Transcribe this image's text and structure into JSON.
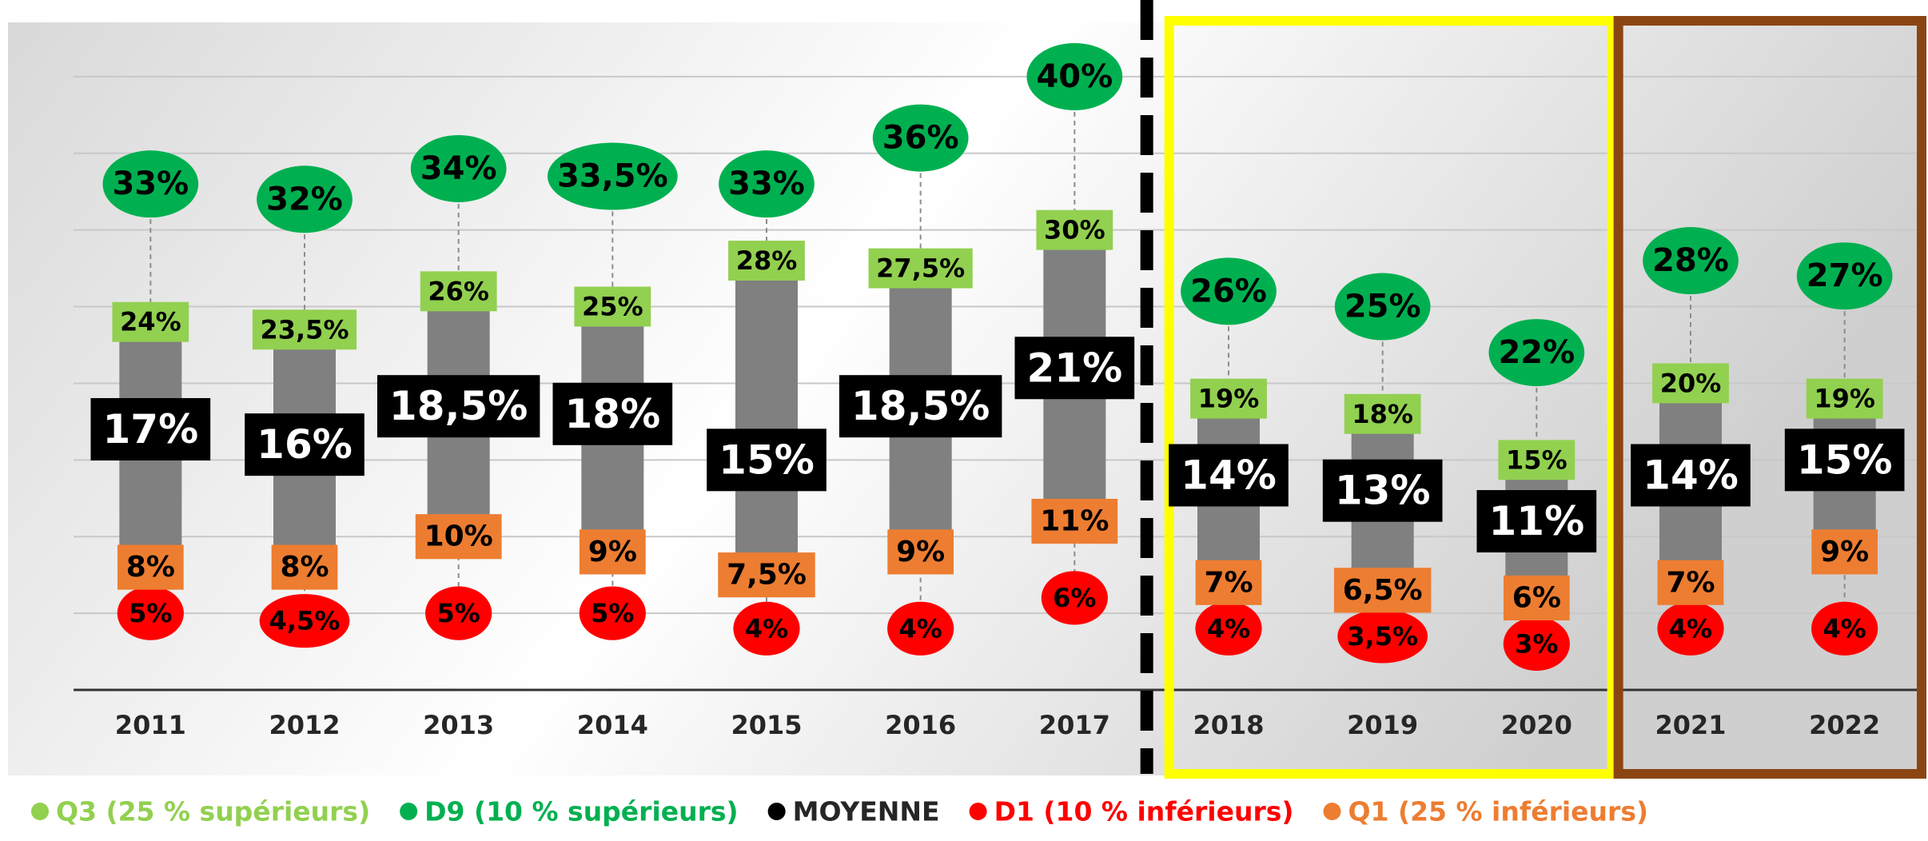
{
  "chart_data": {
    "type": "range",
    "categories": [
      "2011",
      "2012",
      "2013",
      "2014",
      "2015",
      "2016",
      "2017",
      "2018",
      "2019",
      "2020",
      "2021",
      "2022"
    ],
    "ylim": [
      0,
      45
    ],
    "yticks": [
      0,
      5,
      10,
      15,
      20,
      25,
      30,
      35,
      40
    ],
    "grid": true,
    "series": [
      {
        "name": "Q3 (25 % supérieurs)",
        "color": "#92d050",
        "values": [
          24,
          23.5,
          26,
          25,
          28,
          27.5,
          30,
          19,
          18,
          15,
          20,
          19
        ],
        "value_labels": [
          "24%",
          "23,5%",
          "26%",
          "25%",
          "28%",
          "27,5%",
          "30%",
          "19%",
          "18%",
          "15%",
          "20%",
          "19%"
        ]
      },
      {
        "name": "D9 (10 % supérieurs)",
        "color": "#00b050",
        "values": [
          33,
          32,
          34,
          33.5,
          33,
          36,
          40,
          26,
          25,
          22,
          28,
          27
        ],
        "value_labels": [
          "33%",
          "32%",
          "34%",
          "33,5%",
          "33%",
          "36%",
          "40%",
          "26%",
          "25%",
          "22%",
          "28%",
          "27%"
        ]
      },
      {
        "name": "MOYENNE",
        "color": "#000000",
        "values": [
          17,
          16,
          18.5,
          18,
          15,
          18.5,
          21,
          14,
          13,
          11,
          14,
          15
        ],
        "value_labels": [
          "17%",
          "16%",
          "18,5%",
          "18%",
          "15%",
          "18,5%",
          "21%",
          "14%",
          "13%",
          "11%",
          "14%",
          "15%"
        ]
      },
      {
        "name": "D1 (10 % inférieurs)",
        "color": "#ff0000",
        "values": [
          5,
          4.5,
          5,
          5,
          4,
          4,
          6,
          4,
          3.5,
          3,
          4,
          4
        ],
        "value_labels": [
          "5%",
          "4,5%",
          "5%",
          "5%",
          "4%",
          "4%",
          "6%",
          "4%",
          "3,5%",
          "3%",
          "4%",
          "4%"
        ]
      },
      {
        "name": "Q1 (25 % inférieurs)",
        "color": "#ed7d31",
        "values": [
          8,
          8,
          10,
          9,
          7.5,
          9,
          11,
          7,
          6.5,
          6,
          7,
          9
        ],
        "value_labels": [
          "8%",
          "8%",
          "10%",
          "9%",
          "7,5%",
          "9%",
          "11%",
          "7%",
          "6,5%",
          "6%",
          "7%",
          "9%"
        ]
      }
    ]
  }
}
